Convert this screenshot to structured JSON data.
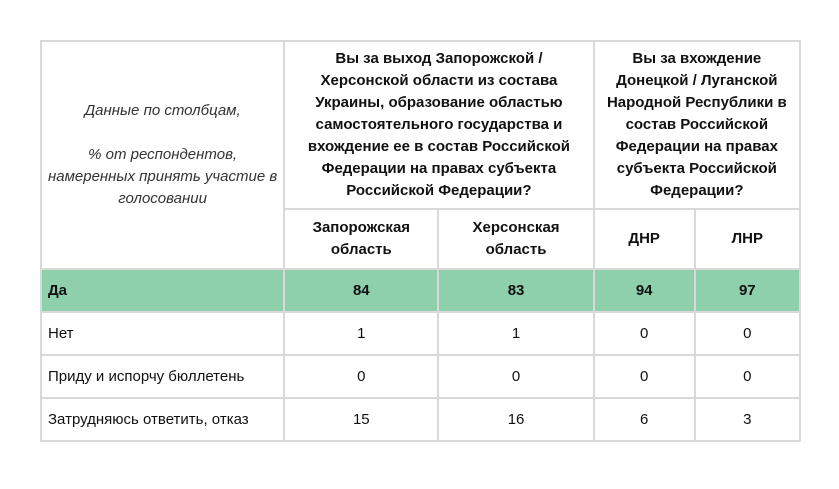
{
  "description": {
    "line1": "Данные по столбцам,",
    "line2": "% от респондентов, намеренных принять участие в голосовании"
  },
  "questions": [
    "Вы за выход Запорожской / Херсонской области из состава Украины, образование областью самостоятельного государства и вхождение ее в состав Российской Федерации на правах субъекта Российской Федерации?",
    "Вы за вхождение Донецкой / Луганской Народной Республики в состав Российской Федерации на правах субъекта Российской Федерации?"
  ],
  "columns": [
    "Запорожская область",
    "Херсонская область",
    "ДНР",
    "ЛНР"
  ],
  "rows": [
    {
      "label": "Да",
      "values": [
        "84",
        "83",
        "94",
        "97"
      ]
    },
    {
      "label": "Нет",
      "values": [
        "1",
        "1",
        "0",
        "0"
      ]
    },
    {
      "label": "Приду и испорчу бюллетень",
      "values": [
        "0",
        "0",
        "0",
        "0"
      ]
    },
    {
      "label": "Затрудняюсь ответить, отказ",
      "values": [
        "15",
        "16",
        "6",
        "3"
      ]
    }
  ],
  "colors": {
    "highlight": "#8ecfac",
    "border": "#d9d9d9"
  }
}
